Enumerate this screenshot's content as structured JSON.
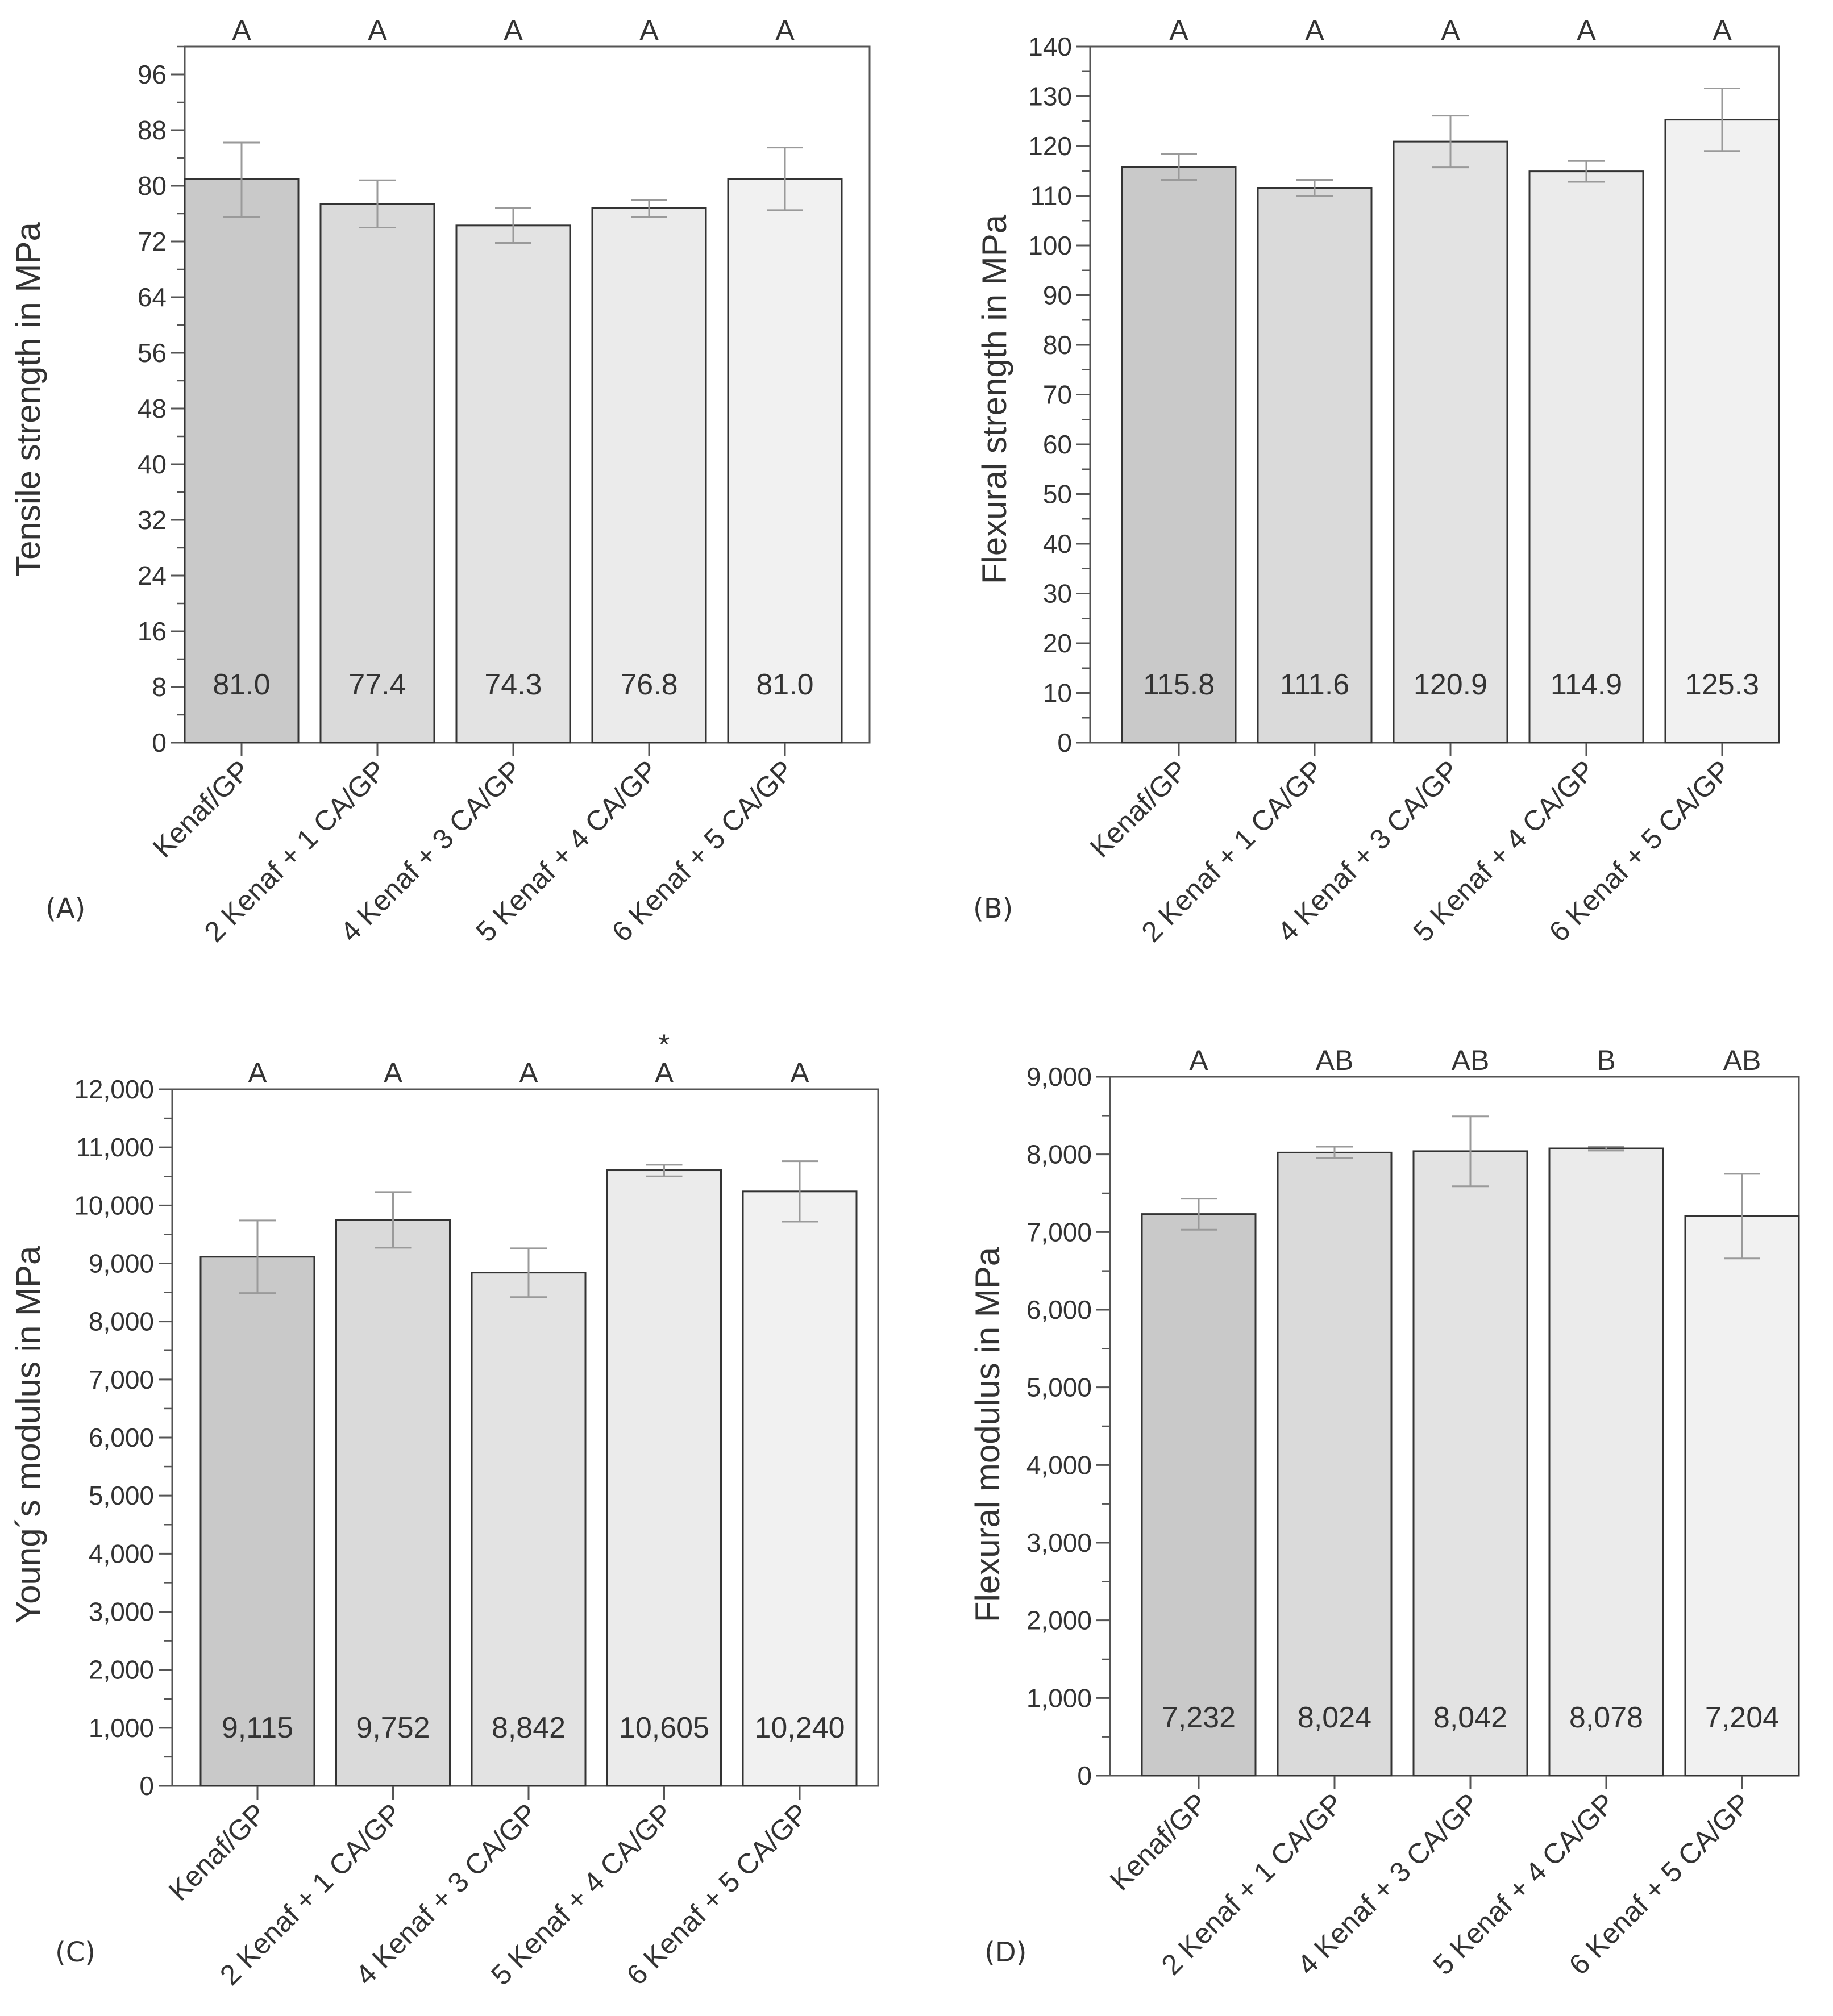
{
  "colors": {
    "axis": "#555555",
    "text": "#333333",
    "bar_stroke": "#333333",
    "error_bar": "#9a9a9a",
    "bar_fills": [
      "#c9c9c9",
      "#dadada",
      "#e3e3e3",
      "#ebebeb",
      "#f1f1f1"
    ]
  },
  "chart_data": [
    {
      "panel_label": "(A)",
      "type": "bar",
      "title": "",
      "xlabel": "",
      "ylabel": "Tensile strength in MPa",
      "categories": [
        "Kenaf/GP",
        "2 Kenaf + 1 CA/GP",
        "4 Kenaf + 3 CA/GP",
        "5 Kenaf + 4 CA/GP",
        "6 Kenaf + 5 CA/GP"
      ],
      "values": [
        81.0,
        77.4,
        74.3,
        76.8,
        81.0
      ],
      "value_labels": [
        "81.0",
        "77.4",
        "74.3",
        "76.8",
        "81.0"
      ],
      "error_low": [
        75.5,
        74.0,
        71.8,
        75.5,
        76.5
      ],
      "error_high": [
        86.2,
        80.8,
        76.8,
        78.0,
        85.5
      ],
      "group_letters": [
        "A",
        "A",
        "A",
        "A",
        "A"
      ],
      "stars": [
        "",
        "",
        "",
        "",
        ""
      ],
      "ylim": [
        0,
        100
      ],
      "yticks": [
        0,
        8,
        16,
        24,
        32,
        40,
        48,
        56,
        64,
        72,
        80,
        88,
        96
      ],
      "ytick_labels": [
        "0",
        "8",
        "16",
        "24",
        "32",
        "40",
        "48",
        "56",
        "64",
        "72",
        "80",
        "88",
        "96"
      ],
      "minor_step": 4,
      "grid": false
    },
    {
      "panel_label": "(B)",
      "type": "bar",
      "title": "",
      "xlabel": "",
      "ylabel": "Flexural strength in MPa",
      "categories": [
        "Kenaf/GP",
        "2 Kenaf + 1 CA/GP",
        "4 Kenaf + 3 CA/GP",
        "5 Kenaf + 4 CA/GP",
        "6 Kenaf + 5 CA/GP"
      ],
      "values": [
        115.8,
        111.6,
        120.9,
        114.9,
        125.3
      ],
      "value_labels": [
        "115.8",
        "111.6",
        "120.9",
        "114.9",
        "125.3"
      ],
      "error_low": [
        113.2,
        110.0,
        115.7,
        112.8,
        119.0
      ],
      "error_high": [
        118.4,
        113.2,
        126.1,
        117.0,
        131.6
      ],
      "group_letters": [
        "A",
        "A",
        "A",
        "A",
        "A"
      ],
      "stars": [
        "",
        "",
        "",
        "",
        ""
      ],
      "ylim": [
        0,
        140
      ],
      "yticks": [
        0,
        10,
        20,
        30,
        40,
        50,
        60,
        70,
        80,
        90,
        100,
        110,
        120,
        130,
        140
      ],
      "ytick_labels": [
        "0",
        "10",
        "20",
        "30",
        "40",
        "50",
        "60",
        "70",
        "80",
        "90",
        "100",
        "110",
        "120",
        "130",
        "140"
      ],
      "minor_step": 5,
      "grid": false
    },
    {
      "panel_label": "(C)",
      "type": "bar",
      "title": "",
      "xlabel": "",
      "ylabel": "Young´s modulus in MPa",
      "categories": [
        "Kenaf/GP",
        "2 Kenaf + 1 CA/GP",
        "4 Kenaf + 3 CA/GP",
        "5 Kenaf + 4 CA/GP",
        "6 Kenaf + 5 CA/GP"
      ],
      "values": [
        9115,
        9752,
        8842,
        10605,
        10240
      ],
      "value_labels": [
        "9,115",
        "9,752",
        "8,842",
        "10,605",
        "10,240"
      ],
      "error_low": [
        8490,
        9270,
        8420,
        10500,
        9720
      ],
      "error_high": [
        9740,
        10230,
        9260,
        10700,
        10760
      ],
      "group_letters": [
        "A",
        "A",
        "A",
        "A",
        "A"
      ],
      "stars": [
        "",
        "",
        "",
        "*",
        ""
      ],
      "ylim": [
        0,
        12000
      ],
      "yticks": [
        0,
        1000,
        2000,
        3000,
        4000,
        5000,
        6000,
        7000,
        8000,
        9000,
        10000,
        11000,
        12000
      ],
      "ytick_labels": [
        "0",
        "1,000",
        "2,000",
        "3,000",
        "4,000",
        "5,000",
        "6,000",
        "7,000",
        "8,000",
        "9,000",
        "10,000",
        "11,000",
        "12,000"
      ],
      "minor_step": 500,
      "grid": false
    },
    {
      "panel_label": "(D)",
      "type": "bar",
      "title": "",
      "xlabel": "",
      "ylabel": "Flexural modulus in MPa",
      "categories": [
        "Kenaf/GP",
        "2 Kenaf + 1 CA/GP",
        "4 Kenaf + 3 CA/GP",
        "5 Kenaf + 4 CA/GP",
        "6 Kenaf + 5 CA/GP"
      ],
      "values": [
        7232,
        8024,
        8042,
        8078,
        7204
      ],
      "value_labels": [
        "7,232",
        "8,024",
        "8,042",
        "8,078",
        "7,204"
      ],
      "error_low": [
        7030,
        7950,
        7590,
        8050,
        6660
      ],
      "error_high": [
        7430,
        8100,
        8490,
        8100,
        7750
      ],
      "group_letters": [
        "A",
        "AB",
        "AB",
        "B",
        "AB"
      ],
      "stars": [
        "",
        "",
        "",
        "",
        ""
      ],
      "ylim": [
        0,
        9000
      ],
      "yticks": [
        0,
        1000,
        2000,
        3000,
        4000,
        5000,
        6000,
        7000,
        8000,
        9000
      ],
      "ytick_labels": [
        "0",
        "1,000",
        "2,000",
        "3,000",
        "4,000",
        "5,000",
        "6,000",
        "7,000",
        "8,000",
        "9,000"
      ],
      "minor_step": 500,
      "grid": false
    }
  ]
}
